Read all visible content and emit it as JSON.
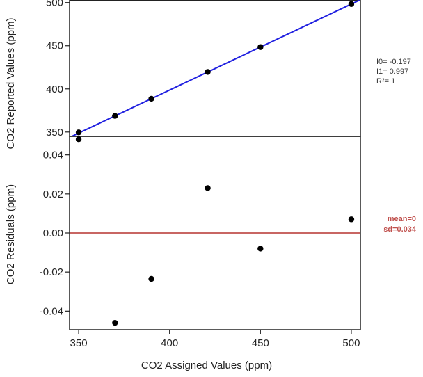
{
  "chart_data": [
    {
      "type": "scatter",
      "panel": "top",
      "ylabel": "CO2  Reported Values (ppm)",
      "xlim": [
        345,
        505
      ],
      "ylim": [
        345,
        503
      ],
      "yticks": [
        350,
        400,
        450,
        500
      ],
      "ytick_labels": [
        "350",
        "400",
        "450",
        "500"
      ],
      "points": {
        "x": [
          350,
          370,
          390,
          421,
          450,
          500
        ],
        "y": [
          349.6,
          368.7,
          388.6,
          419.6,
          448.4,
          498.3
        ]
      },
      "fit_line": {
        "intercept": -0.197,
        "slope": 0.997,
        "color": "#2020e0"
      },
      "stats": [
        "I0= -0.197",
        "I1= 0.997",
        "R²= 1"
      ],
      "grid": false
    },
    {
      "type": "scatter",
      "panel": "bottom",
      "xlabel": "CO2 Assigned Values (ppm)",
      "ylabel": "CO2 Residuals (ppm)",
      "xlim": [
        345,
        505
      ],
      "ylim": [
        -0.0495,
        0.0495
      ],
      "xticks": [
        350,
        400,
        450,
        500
      ],
      "xtick_labels": [
        "350",
        "400",
        "450",
        "500"
      ],
      "yticks": [
        0.04,
        0.02,
        0.0,
        -0.02,
        -0.04
      ],
      "ytick_labels": [
        "0.04",
        "0.02",
        "0.00",
        "-0.02",
        "-0.04"
      ],
      "points": {
        "x": [
          350,
          370,
          390,
          421,
          450,
          500
        ],
        "y": [
          0.048,
          -0.046,
          -0.0235,
          0.023,
          -0.008,
          0.007
        ]
      },
      "zero_line": {
        "y": 0,
        "color": "#c0504d"
      },
      "stats": [
        "mean=0",
        "sd=0.034"
      ],
      "stats_color": "#c0504d",
      "grid": false
    }
  ]
}
